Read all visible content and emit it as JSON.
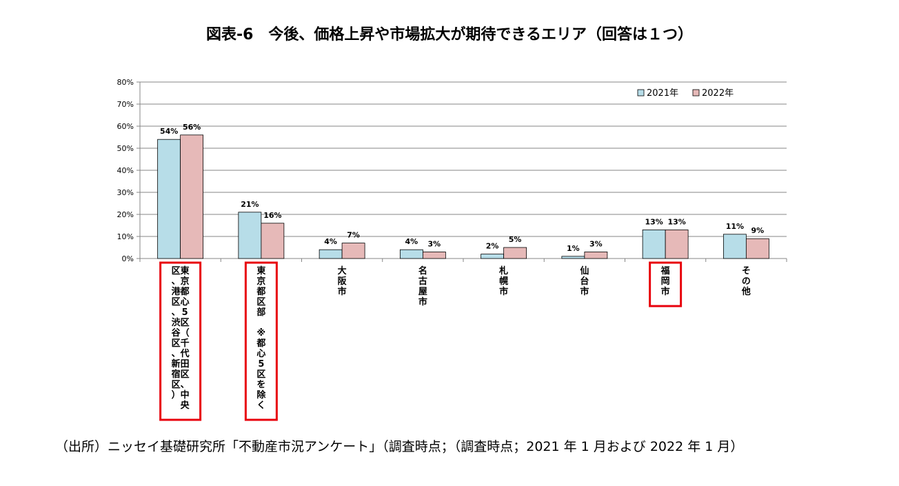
{
  "title": "図表-6　今後、価格上昇や市場拡大が期待できるエリア（回答は１つ）",
  "source": "（出所）ニッセイ基礎研究所「不動産市況アンケート」（調査時点；（調査時点；2021 年 1 月および 2022 年 1 月）",
  "colors": {
    "series_2021": "#b7dde8",
    "series_2022": "#e6b9b8",
    "highlight_box": "#e8000b",
    "grid": "#868686",
    "bar_border": "#000000"
  },
  "chart_data": {
    "type": "bar",
    "ylim": [
      0,
      80
    ],
    "yticks": [
      "0%",
      "10%",
      "20%",
      "30%",
      "40%",
      "50%",
      "60%",
      "70%",
      "80%"
    ],
    "grid": true,
    "legend_position": "top-right",
    "categories": [
      {
        "columns": [
          "東京都心5区（千代田区、中央",
          "区、港区、渋谷区、新宿区）"
        ],
        "highlighted": true
      },
      {
        "columns": [
          "東京都区部　※都心5区を除く"
        ],
        "highlighted": true
      },
      {
        "columns": [
          "大阪市"
        ],
        "highlighted": false
      },
      {
        "columns": [
          "名古屋市"
        ],
        "highlighted": false
      },
      {
        "columns": [
          "札幌市"
        ],
        "highlighted": false
      },
      {
        "columns": [
          "仙台市"
        ],
        "highlighted": false
      },
      {
        "columns": [
          "福岡市"
        ],
        "highlighted": true
      },
      {
        "columns": [
          "その他"
        ],
        "highlighted": false
      }
    ],
    "series": [
      {
        "name": "2021年",
        "values": [
          54,
          21,
          4,
          4,
          2,
          1,
          13,
          11
        ],
        "labels": [
          "54%",
          "21%",
          "4%",
          "4%",
          "2%",
          "1%",
          "13%",
          "11%"
        ]
      },
      {
        "name": "2022年",
        "values": [
          56,
          16,
          7,
          3,
          5,
          3,
          13,
          9
        ],
        "labels": [
          "56%",
          "16%",
          "7%",
          "3%",
          "5%",
          "3%",
          "13%",
          "9%"
        ]
      }
    ]
  }
}
